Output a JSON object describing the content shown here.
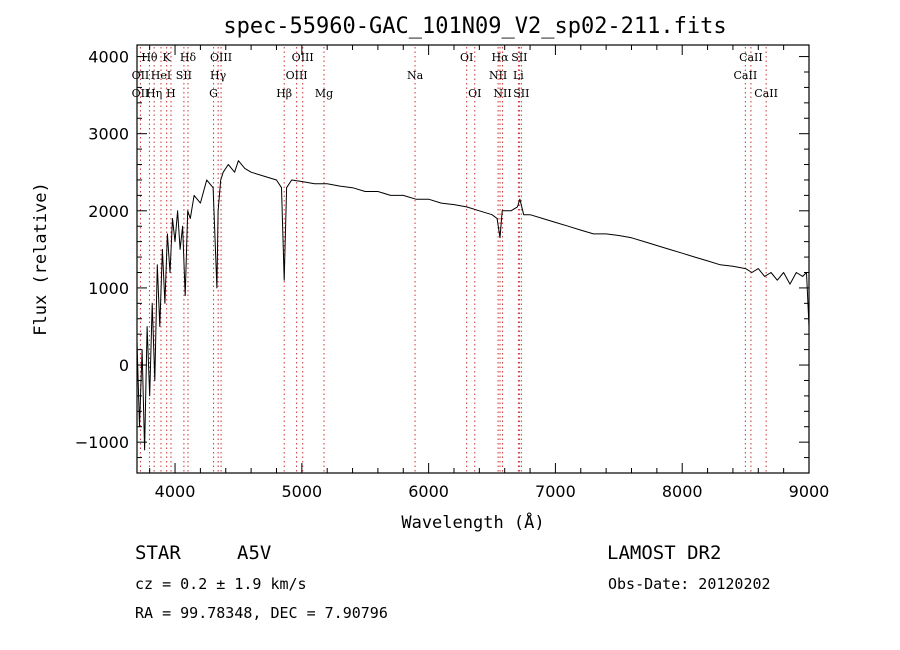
{
  "chart_data": {
    "type": "line",
    "title": "spec-55960-GAC_101N09_V2_sp02-211.fits",
    "xlabel": "Wavelength (Å)",
    "ylabel": "Flux (relative)",
    "xlim": [
      3700,
      9000
    ],
    "ylim": [
      -1400,
      4150
    ],
    "x_ticks": [
      4000,
      5000,
      6000,
      7000,
      8000,
      9000
    ],
    "y_ticks": [
      -1000,
      0,
      1000,
      2000,
      3000,
      4000
    ],
    "x_tick_labels": [
      "4000",
      "5000",
      "6000",
      "7000",
      "8000",
      "9000"
    ],
    "y_tick_labels": [
      "−1000",
      "0",
      "1000",
      "2000",
      "3000",
      "4000"
    ],
    "grid": false,
    "series": [
      {
        "x": [
          3700,
          3720,
          3740,
          3760,
          3780,
          3800,
          3820,
          3840,
          3860,
          3880,
          3900,
          3920,
          3940,
          3960,
          3980,
          4000,
          4020,
          4040,
          4060,
          4080,
          4100,
          4120,
          4150,
          4200,
          4250,
          4300,
          4330,
          4340,
          4360,
          4380,
          4420,
          4470,
          4500,
          4550,
          4600,
          4700,
          4800,
          4840,
          4861,
          4880,
          4920,
          5000,
          5100,
          5200,
          5300,
          5400,
          5500,
          5600,
          5700,
          5800,
          5900,
          6000,
          6100,
          6200,
          6300,
          6400,
          6500,
          6540,
          6563,
          6580,
          6600,
          6650,
          6700,
          6720,
          6750,
          6800,
          6900,
          7000,
          7100,
          7200,
          7300,
          7400,
          7500,
          7600,
          7700,
          7800,
          7900,
          8000,
          8100,
          8200,
          8300,
          8400,
          8500,
          8550,
          8600,
          8650,
          8700,
          8750,
          8800,
          8850,
          8900,
          8950,
          8980,
          9000
        ],
        "values": [
          300,
          -800,
          200,
          -1100,
          500,
          -400,
          800,
          -200,
          1300,
          500,
          1500,
          800,
          1700,
          1200,
          1900,
          1600,
          2000,
          1500,
          1800,
          900,
          2000,
          1900,
          2200,
          2100,
          2400,
          2300,
          1000,
          2000,
          2400,
          2500,
          2600,
          2500,
          2650,
          2550,
          2500,
          2450,
          2400,
          2300,
          1100,
          2300,
          2400,
          2380,
          2350,
          2350,
          2320,
          2300,
          2250,
          2250,
          2200,
          2200,
          2150,
          2150,
          2100,
          2080,
          2050,
          2000,
          1950,
          1900,
          1650,
          2000,
          2000,
          2000,
          2050,
          2150,
          1950,
          1950,
          1900,
          1850,
          1800,
          1750,
          1700,
          1700,
          1680,
          1650,
          1600,
          1550,
          1500,
          1450,
          1400,
          1350,
          1300,
          1280,
          1250,
          1200,
          1250,
          1150,
          1200,
          1100,
          1200,
          1050,
          1200,
          1150,
          1200,
          500
        ]
      }
    ],
    "line_labels": [
      {
        "text": "Hθ",
        "x": 3798,
        "row": 0
      },
      {
        "text": "K",
        "x": 3934,
        "row": 0
      },
      {
        "text": "Hδ",
        "x": 4102,
        "row": 0
      },
      {
        "text": "OIII",
        "x": 4363,
        "row": 0
      },
      {
        "text": "OIII",
        "x": 5007,
        "row": 0
      },
      {
        "text": "OI",
        "x": 6300,
        "row": 0
      },
      {
        "text": "Hα",
        "x": 6563,
        "row": 0
      },
      {
        "text": "SII",
        "x": 6716,
        "row": 0
      },
      {
        "text": "CaII",
        "x": 8542,
        "row": 0
      },
      {
        "text": "OII",
        "x": 3727,
        "row": 1
      },
      {
        "text": "HeI",
        "x": 3889,
        "row": 1
      },
      {
        "text": "SII",
        "x": 4070,
        "row": 1
      },
      {
        "text": "Hγ",
        "x": 4340,
        "row": 1
      },
      {
        "text": "OIII",
        "x": 4959,
        "row": 1
      },
      {
        "text": "Na",
        "x": 5893,
        "row": 1
      },
      {
        "text": "NII",
        "x": 6548,
        "row": 1
      },
      {
        "text": "Li",
        "x": 6708,
        "row": 1
      },
      {
        "text": "CaII",
        "x": 8498,
        "row": 1
      },
      {
        "text": "OII",
        "x": 3727,
        "row": 2
      },
      {
        "text": "Hη",
        "x": 3835,
        "row": 2
      },
      {
        "text": "H",
        "x": 3968,
        "row": 2
      },
      {
        "text": "G",
        "x": 4304,
        "row": 2
      },
      {
        "text": "Hβ",
        "x": 4861,
        "row": 2
      },
      {
        "text": "Mg",
        "x": 5175,
        "row": 2
      },
      {
        "text": "OI",
        "x": 6364,
        "row": 2
      },
      {
        "text": "NII",
        "x": 6583,
        "row": 2
      },
      {
        "text": "SII",
        "x": 6731,
        "row": 2
      },
      {
        "text": "CaII",
        "x": 8662,
        "row": 2
      }
    ],
    "reference_lines": [
      3727,
      3798,
      3835,
      3889,
      3934,
      3968,
      4070,
      4102,
      4304,
      4340,
      4363,
      4861,
      4959,
      5007,
      5175,
      5893,
      6300,
      6364,
      6548,
      6563,
      6583,
      6708,
      6716,
      6731,
      8498,
      8542,
      8662
    ],
    "line_color": "#000000",
    "reference_line_color": "#cc3333"
  },
  "footer": {
    "object_class": "STAR",
    "subclass": "A5V",
    "cz": "cz = 0.2 ± 1.9 km/s",
    "coords": "RA =  99.78348, DEC =   7.90796",
    "survey": "LAMOST DR2",
    "obs_date": "Obs-Date: 20120202"
  }
}
